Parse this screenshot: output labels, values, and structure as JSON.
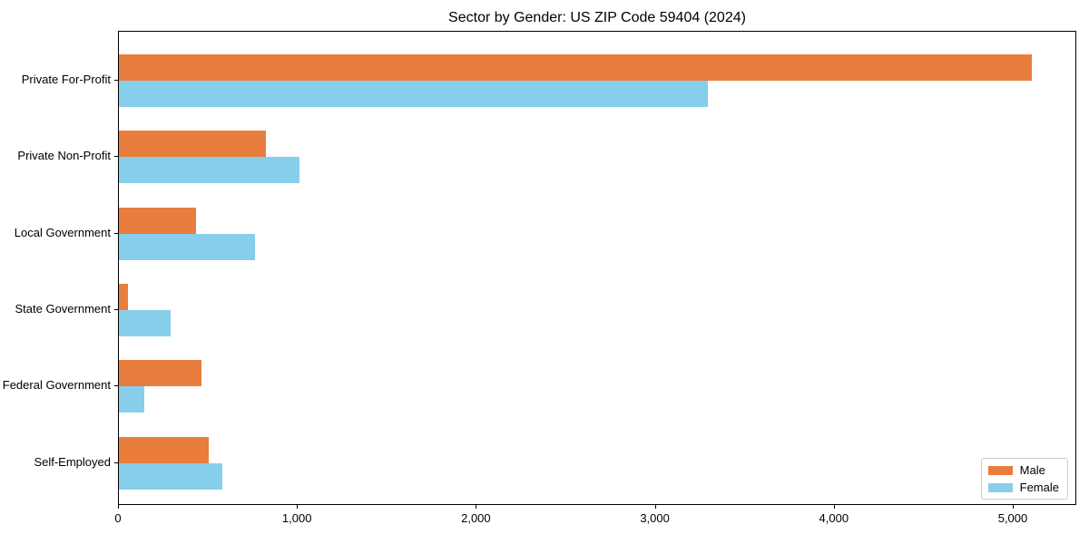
{
  "chart_data": {
    "type": "bar",
    "orientation": "horizontal",
    "title": "Sector by Gender: US ZIP Code 59404 (2024)",
    "categories": [
      "Private For-Profit",
      "Private Non-Profit",
      "Local Government",
      "State Government",
      "Federal Government",
      "Self-Employed"
    ],
    "series": [
      {
        "name": "Male",
        "color": "#e87d3d",
        "values": [
          5100,
          820,
          430,
          50,
          460,
          500
        ]
      },
      {
        "name": "Female",
        "color": "#87ceeb",
        "values": [
          3290,
          1010,
          760,
          290,
          140,
          580
        ]
      }
    ],
    "xlabel": "",
    "ylabel": "",
    "xlim": [
      0,
      5355
    ],
    "x_ticks": [
      0,
      1000,
      2000,
      3000,
      4000,
      5000
    ],
    "x_tick_labels": [
      "0",
      "1,000",
      "2,000",
      "3,000",
      "4,000",
      "5,000"
    ],
    "legend_position": "lower right",
    "grid": false,
    "axis_color": "#000000",
    "background_color": "#ffffff"
  }
}
